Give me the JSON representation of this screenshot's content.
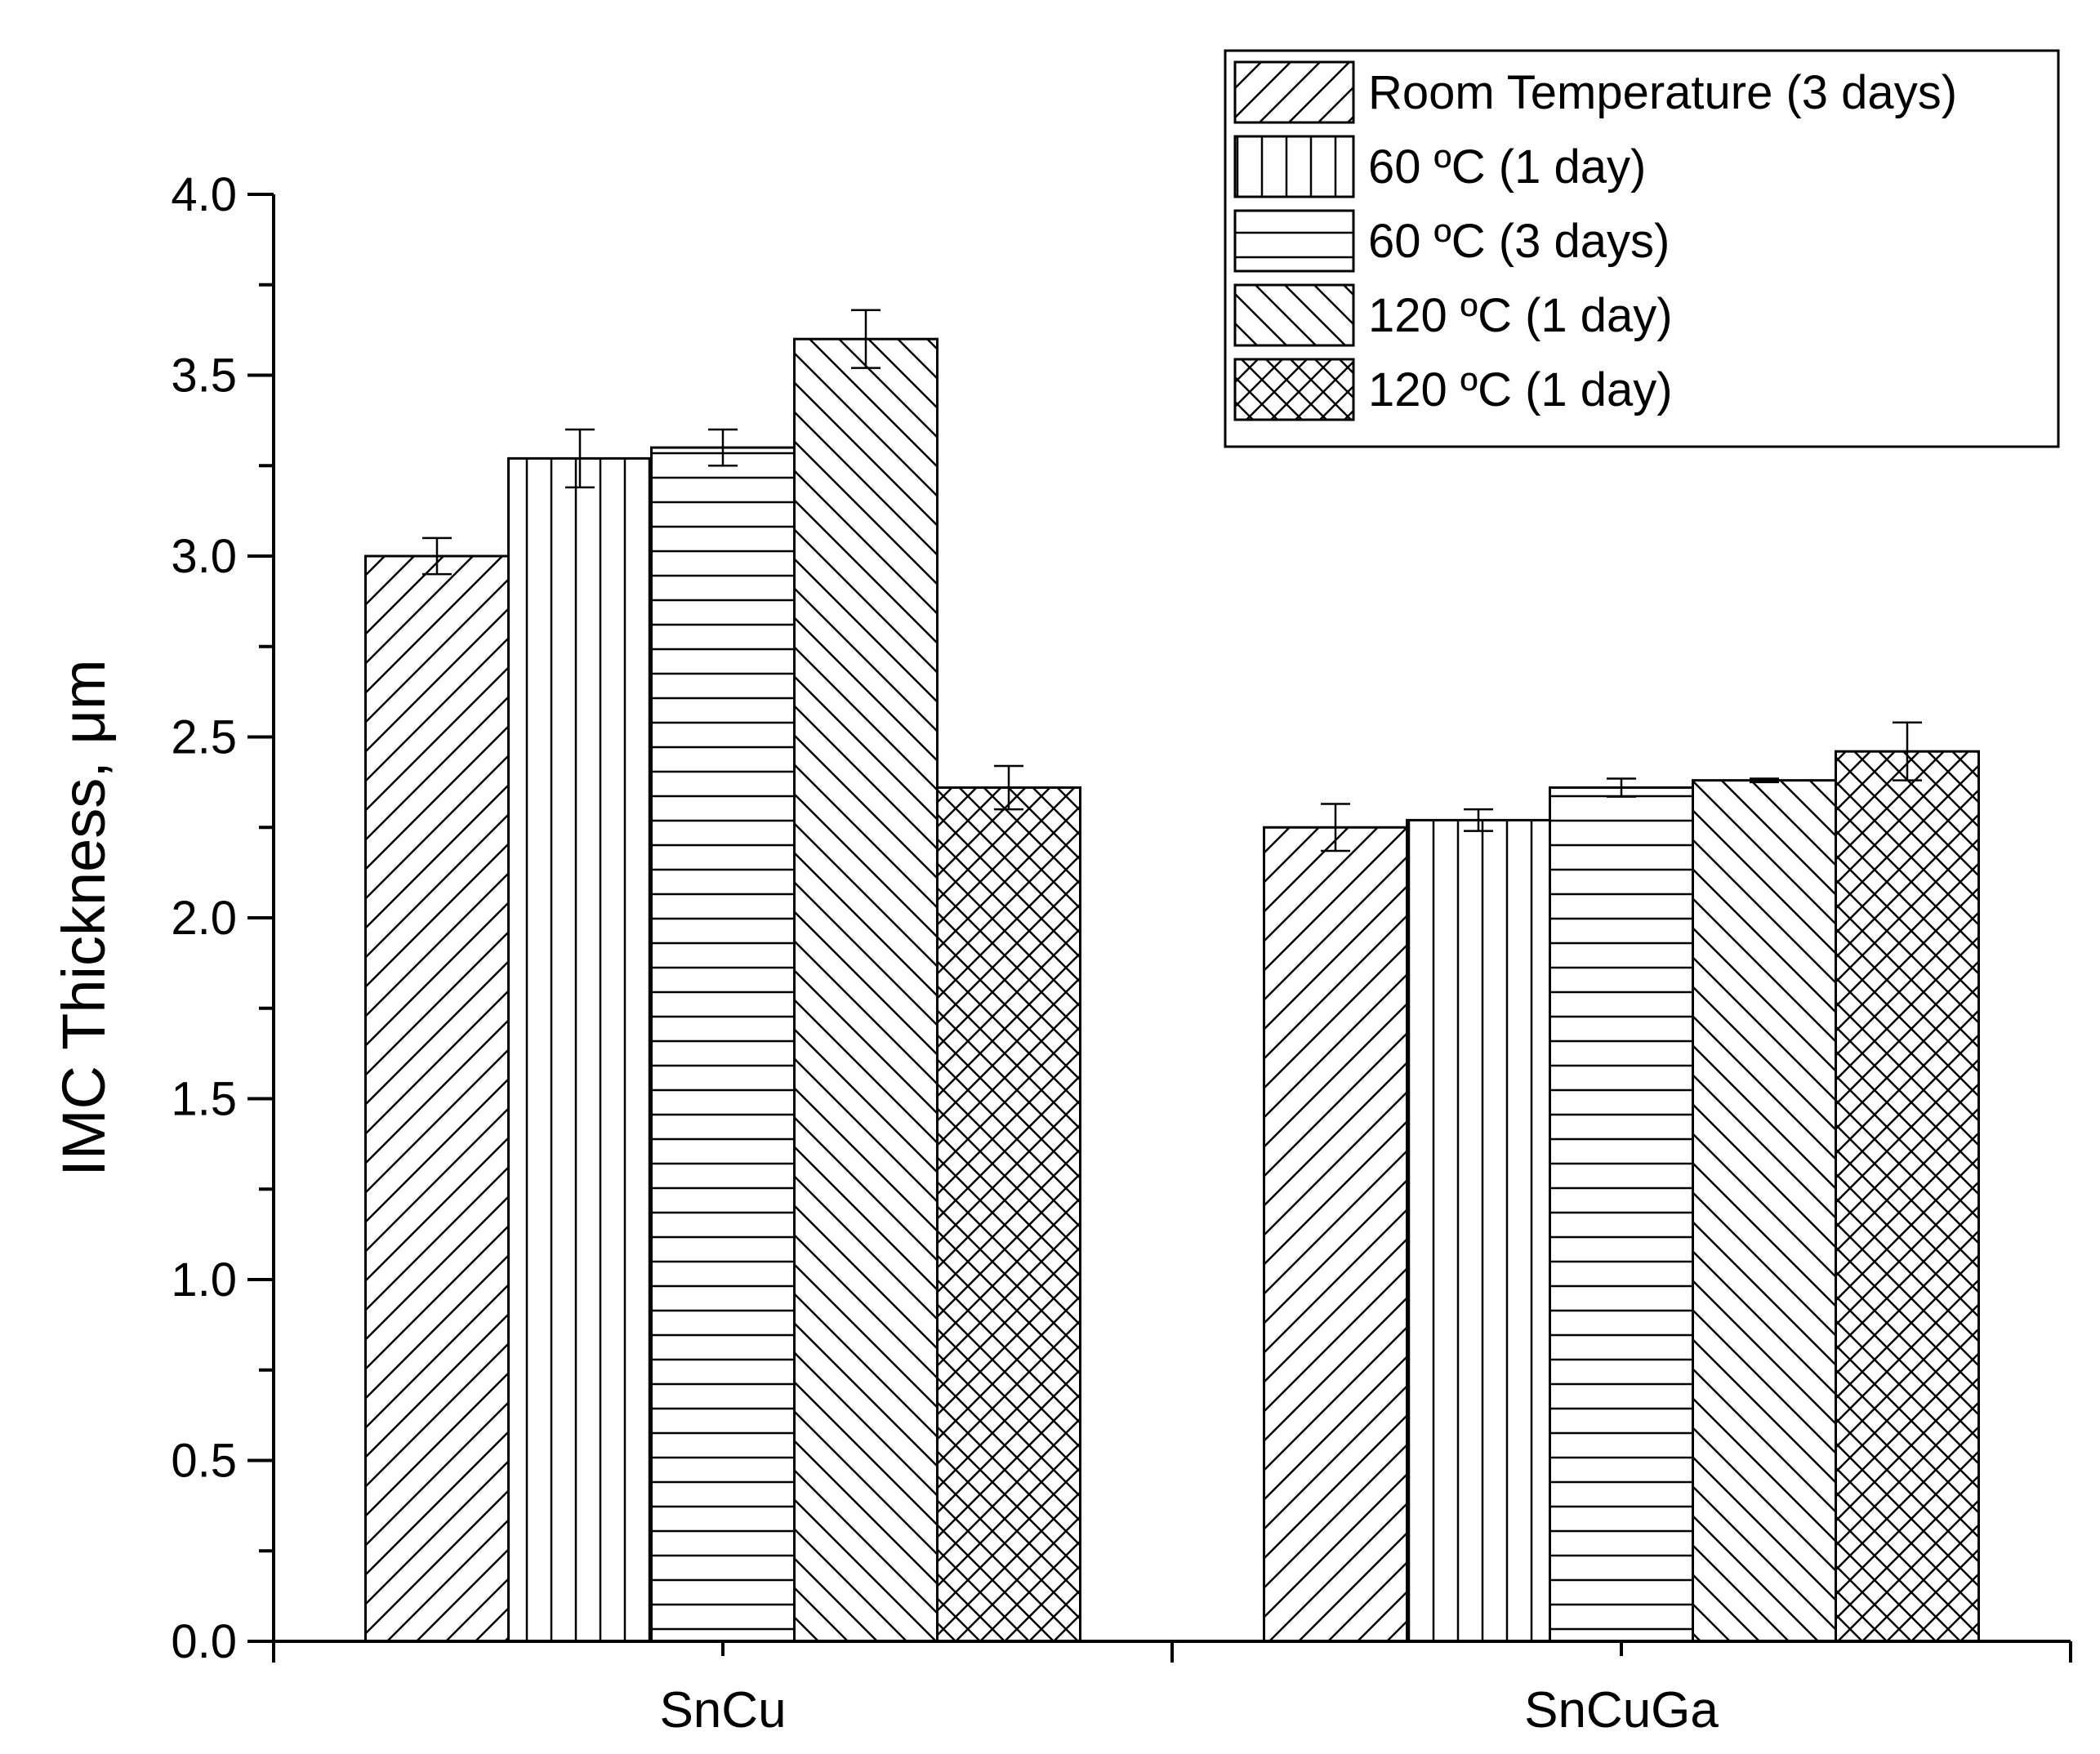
{
  "chart_data": {
    "type": "bar",
    "title": "",
    "xlabel": "",
    "ylabel": "IMC Thickness, μm",
    "ylim": [
      0,
      4.0
    ],
    "yticks": [
      0.0,
      0.5,
      1.0,
      1.5,
      2.0,
      2.5,
      3.0,
      3.5,
      4.0
    ],
    "ytick_labels": [
      "0.0",
      "0.5",
      "1.0",
      "1.5",
      "2.0",
      "2.5",
      "3.0",
      "3.5",
      "4.0"
    ],
    "grid": false,
    "legend_position": "top-right",
    "categories": [
      "SnCu",
      "SnCuGa"
    ],
    "series": [
      {
        "name": "Room Temperature (3 days)",
        "pattern": "diag-up",
        "values": [
          3.0,
          2.25
        ],
        "errors": [
          0.05,
          0.065
        ]
      },
      {
        "name": "60 ºC (1 day)",
        "pattern": "vertical",
        "values": [
          3.27,
          2.27
        ],
        "errors": [
          0.08,
          0.03
        ]
      },
      {
        "name": "60 ºC (3 days)",
        "pattern": "horizontal",
        "values": [
          3.3,
          2.36
        ],
        "errors": [
          0.05,
          0.025
        ]
      },
      {
        "name": "120 ºC (1 day)",
        "pattern": "diag-down",
        "values": [
          3.6,
          2.38
        ],
        "errors": [
          0.08,
          0.005
        ]
      },
      {
        "name": "120 ºC (1 day)",
        "pattern": "crosshatch",
        "values": [
          2.36,
          2.46
        ],
        "errors": [
          0.06,
          0.08
        ]
      }
    ]
  }
}
